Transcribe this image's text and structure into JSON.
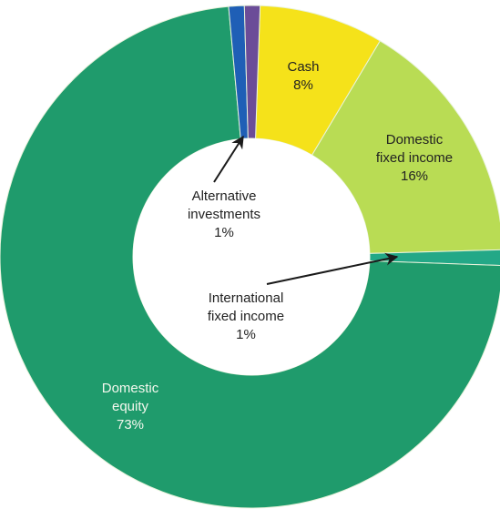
{
  "chart_data": {
    "type": "pie",
    "donut": true,
    "title": "",
    "slices": [
      {
        "label_lines": [
          "Cash",
          "8%"
        ],
        "value": 8,
        "color": "#f5e21a",
        "label_color": "dark"
      },
      {
        "label_lines": [
          "Domestic",
          "fixed income",
          "16%"
        ],
        "value": 16,
        "color": "#b9dc54",
        "label_color": "dark"
      },
      {
        "label_lines": [
          "International",
          "fixed income",
          "1%"
        ],
        "value": 1,
        "color": "#23a887",
        "label_color": "dark"
      },
      {
        "label_lines": [
          "Domestic",
          "equity",
          "73%"
        ],
        "value": 73,
        "color": "#1f9b6c",
        "label_color": "light"
      },
      {
        "label_lines": [
          "Alternative",
          "investments",
          "1%"
        ],
        "value": 1,
        "color": "#1f5fb6",
        "label_color": "dark"
      },
      {
        "label_lines": [],
        "value": 1,
        "color": "#6b4c98",
        "label_color": "dark"
      }
    ],
    "legend": "none"
  }
}
